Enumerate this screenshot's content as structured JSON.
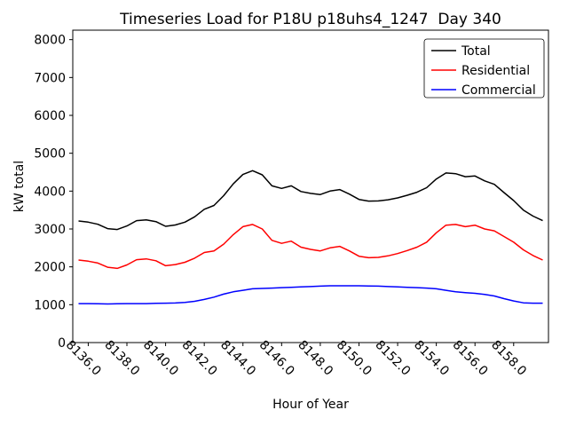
{
  "chart_data": {
    "type": "line",
    "title": "Timeseries Load for P18U p18uhs4_1247  Day 340",
    "xlabel": "Hour of Year",
    "ylabel": "kW total",
    "xlim": [
      8135.2,
      8159.8
    ],
    "ylim": [
      0,
      8250
    ],
    "grid": false,
    "legend_position": "upper right",
    "x_ticks": [
      8136,
      8138,
      8140,
      8142,
      8144,
      8146,
      8148,
      8150,
      8152,
      8154,
      8156,
      8158
    ],
    "x_tick_labels": [
      "8136.0",
      "8138.0",
      "8140.0",
      "8142.0",
      "8144.0",
      "8146.0",
      "8148.0",
      "8150.0",
      "8152.0",
      "8154.0",
      "8156.0",
      "8158.0"
    ],
    "y_ticks": [
      0,
      1000,
      2000,
      3000,
      4000,
      5000,
      6000,
      7000,
      8000
    ],
    "y_tick_labels": [
      "0",
      "1000",
      "2000",
      "3000",
      "4000",
      "5000",
      "6000",
      "7000",
      "8000"
    ],
    "x": [
      8135.5,
      8136.0,
      8136.5,
      8137.0,
      8137.5,
      8138.0,
      8138.5,
      8139.0,
      8139.5,
      8140.0,
      8140.5,
      8141.0,
      8141.5,
      8142.0,
      8142.5,
      8143.0,
      8143.5,
      8144.0,
      8144.5,
      8145.0,
      8145.5,
      8146.0,
      8146.5,
      8147.0,
      8147.5,
      8148.0,
      8148.5,
      8149.0,
      8149.5,
      8150.0,
      8150.5,
      8151.0,
      8151.5,
      8152.0,
      8152.5,
      8153.0,
      8153.5,
      8154.0,
      8154.5,
      8155.0,
      8155.5,
      8156.0,
      8156.5,
      8157.0,
      8157.5,
      8158.0,
      8158.5,
      8159.0,
      8159.5
    ],
    "series": [
      {
        "name": "Total",
        "color": "#000000",
        "values": [
          3210,
          3180,
          3125,
          3010,
          2985,
          3080,
          3220,
          3240,
          3195,
          3070,
          3105,
          3180,
          3320,
          3520,
          3620,
          3880,
          4190,
          4440,
          4540,
          4430,
          4140,
          4070,
          4140,
          3990,
          3940,
          3910,
          4000,
          4040,
          3920,
          3780,
          3735,
          3740,
          3770,
          3820,
          3890,
          3970,
          4090,
          4320,
          4480,
          4460,
          4380,
          4400,
          4270,
          4180,
          3960,
          3750,
          3500,
          3340,
          3220
        ]
      },
      {
        "name": "Residential",
        "color": "#ff0000",
        "values": [
          2180,
          2150,
          2100,
          1990,
          1960,
          2050,
          2190,
          2210,
          2160,
          2030,
          2060,
          2120,
          2230,
          2380,
          2420,
          2600,
          2850,
          3060,
          3120,
          3000,
          2700,
          2620,
          2680,
          2520,
          2460,
          2420,
          2500,
          2540,
          2420,
          2280,
          2240,
          2250,
          2290,
          2350,
          2430,
          2520,
          2650,
          2900,
          3100,
          3120,
          3060,
          3100,
          3000,
          2950,
          2800,
          2650,
          2450,
          2300,
          2180
        ]
      },
      {
        "name": "Commercial",
        "color": "#0000ff",
        "values": [
          1030,
          1030,
          1025,
          1020,
          1025,
          1030,
          1030,
          1030,
          1035,
          1040,
          1045,
          1060,
          1090,
          1140,
          1200,
          1280,
          1340,
          1380,
          1420,
          1430,
          1440,
          1450,
          1460,
          1470,
          1480,
          1490,
          1500,
          1500,
          1500,
          1500,
          1495,
          1490,
          1480,
          1470,
          1460,
          1450,
          1440,
          1420,
          1380,
          1340,
          1320,
          1300,
          1270,
          1230,
          1160,
          1100,
          1050,
          1040,
          1040
        ]
      }
    ]
  }
}
